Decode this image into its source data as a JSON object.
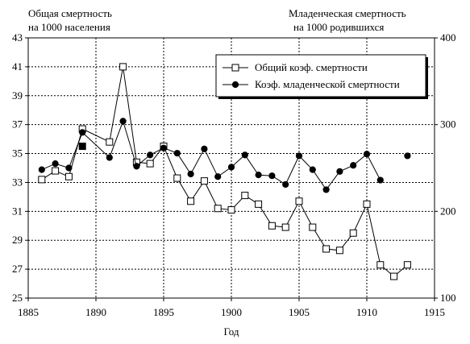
{
  "chart_data": {
    "type": "line",
    "left_axis_title_line1": "Общая смертность",
    "left_axis_title_line2": "на 1000 населения",
    "right_axis_title_line1": "Младенческая смертность",
    "right_axis_title_line2": "на 1000 родившихся",
    "xlabel": "Год",
    "xlim": [
      1885,
      1915
    ],
    "x_ticks": [
      1885,
      1890,
      1895,
      1900,
      1905,
      1910,
      1915
    ],
    "ylim_left": [
      25,
      43
    ],
    "y_ticks_left": [
      25,
      27,
      29,
      31,
      33,
      35,
      37,
      39,
      41,
      43
    ],
    "ylim_right": [
      100,
      400
    ],
    "y_ticks_right": [
      100,
      200,
      300,
      400
    ],
    "grid": true,
    "legend_position": "top-right",
    "series": [
      {
        "name": "Общий коэф. смертности",
        "axis": "left",
        "marker": "square-open",
        "color": "#000000",
        "x": [
          1886,
          1887,
          1888,
          1889,
          1891,
          1892,
          1893,
          1894,
          1895,
          1896,
          1897,
          1898,
          1899,
          1900,
          1901,
          1902,
          1903,
          1904,
          1905,
          1906,
          1907,
          1908,
          1909,
          1910,
          1911,
          1912,
          1913
        ],
        "values": [
          33.2,
          33.8,
          33.4,
          36.7,
          35.8,
          41.0,
          34.4,
          34.3,
          35.5,
          33.3,
          31.7,
          33.1,
          31.2,
          31.1,
          32.1,
          31.5,
          30.0,
          29.9,
          31.7,
          29.9,
          28.4,
          28.3,
          29.5,
          31.5,
          27.3,
          26.5,
          27.3
        ]
      },
      {
        "name": "Коэф. младенческой смертности",
        "axis": "right",
        "marker": "circle-filled",
        "color": "#000000",
        "x": [
          1886,
          1887,
          1888,
          1889,
          1891,
          1892,
          1893,
          1894,
          1895,
          1896,
          1897,
          1898,
          1899,
          1900,
          1901,
          1902,
          1903,
          1904,
          1905,
          1906,
          1907,
          1908,
          1909,
          1910,
          1911
        ],
        "values": [
          248,
          255,
          250,
          291,
          262,
          304,
          252,
          265,
          273,
          267,
          243,
          272,
          240,
          251,
          265,
          242,
          241,
          231,
          264,
          248,
          225,
          246,
          253,
          266,
          236
        ]
      },
      {
        "name": "",
        "axis": "right",
        "marker": "circle-filled",
        "color": "#000000",
        "x": [
          1913
        ],
        "values": [
          264
        ]
      }
    ],
    "extra_markers": [
      {
        "x": 1889,
        "axis": "left",
        "value": 35.5,
        "marker": "square-filled"
      }
    ]
  }
}
